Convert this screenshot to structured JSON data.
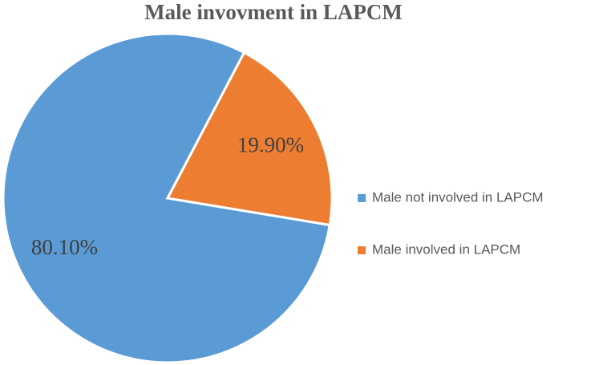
{
  "chart_data": {
    "type": "pie",
    "title": "Male invovment in LAPCM",
    "categories": [
      "Male not involved in LAPCM",
      "Male involved in LAPCM"
    ],
    "values": [
      80.1,
      19.9
    ],
    "value_labels": [
      "80.10%",
      "19.90%"
    ],
    "colors": [
      "#5b9bd5",
      "#ed7d31"
    ],
    "legend": "right"
  }
}
